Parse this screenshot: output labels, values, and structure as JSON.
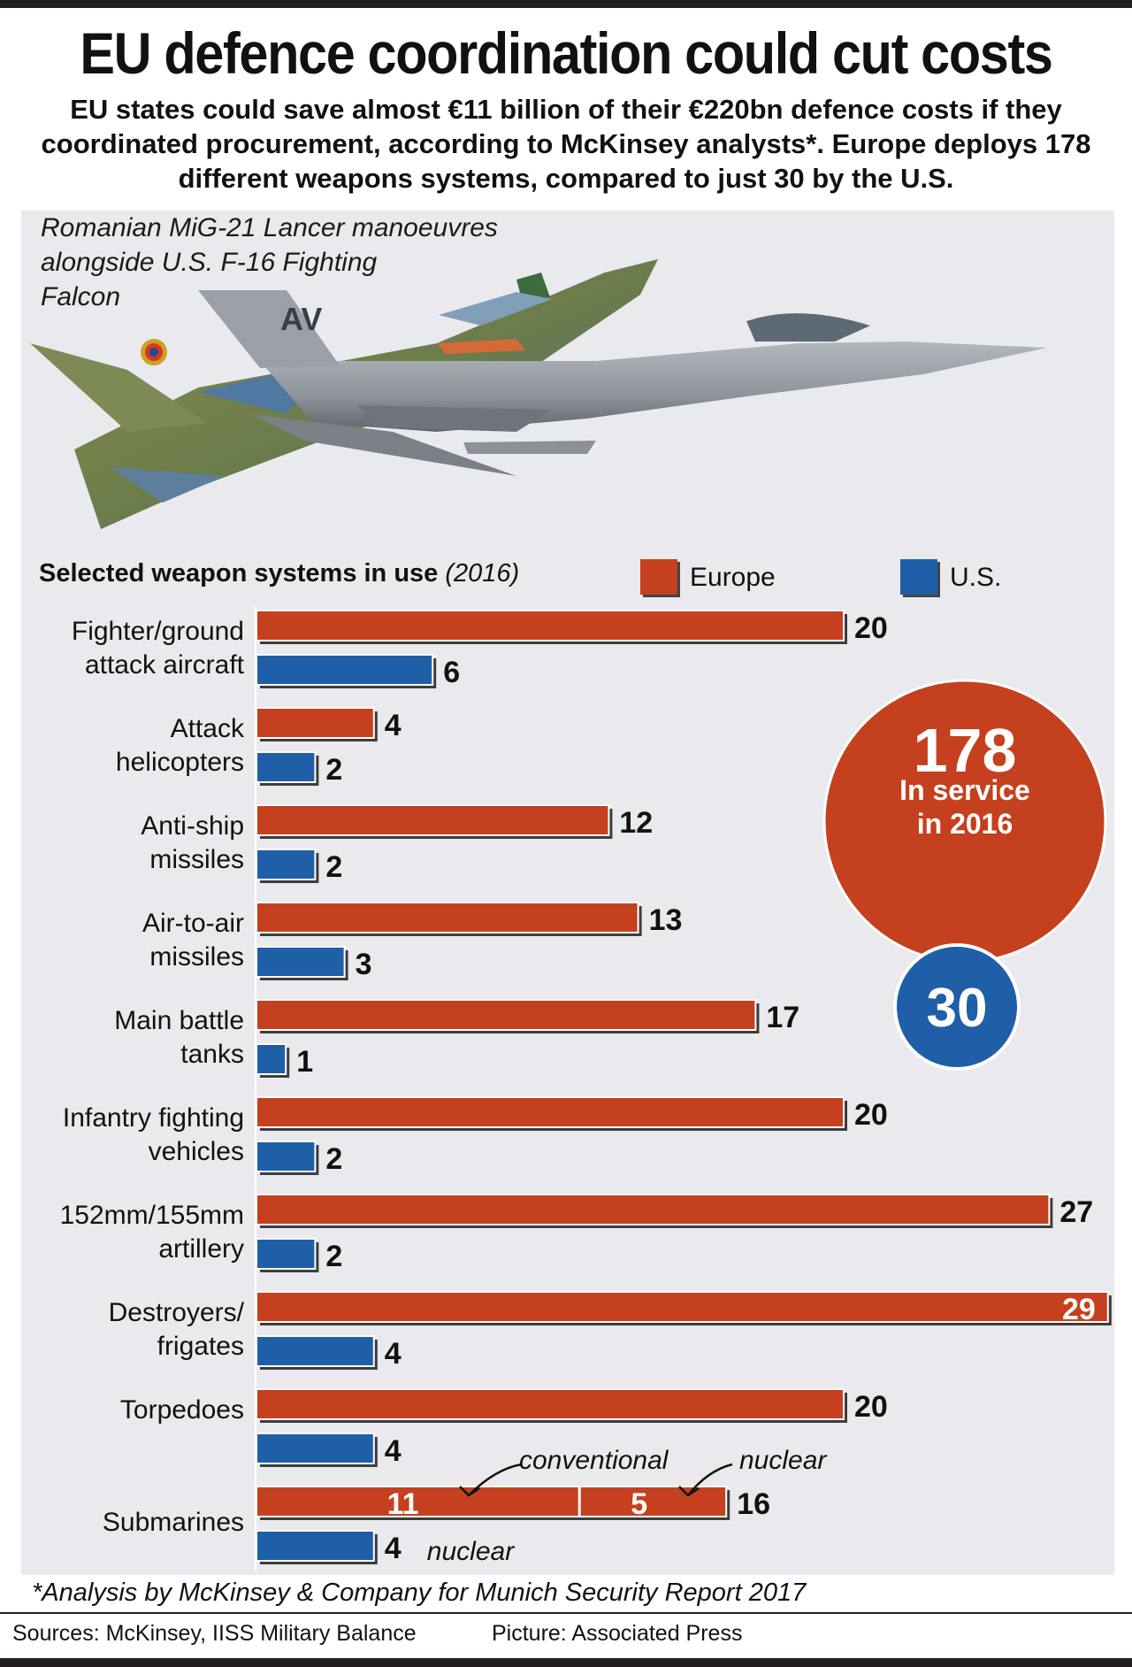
{
  "header": {
    "title": "EU defence coordination could cut costs",
    "subtitle": "EU states could save almost €11 billion of their €220bn defence costs if they coordinated procurement, according to McKinsey analysts*. Europe deploys 178 different weapons systems, compared to just 30 by the U.S."
  },
  "photo": {
    "caption_lines": [
      "Romanian MiG-21 Lancer manoeuvres",
      "alongside U.S. F-16 Fighting",
      "Falcon"
    ],
    "tail_code": "AV"
  },
  "colors": {
    "europe": "#c5401e",
    "us": "#1f5fa8",
    "panel": "#e9e9ee"
  },
  "chart_data": {
    "type": "bar",
    "title": "Selected weapon systems in use",
    "title_year": "(2016)",
    "legend": [
      "Europe",
      "U.S."
    ],
    "categories": [
      "Fighter/ground attack aircraft",
      "Attack helicopters",
      "Anti-ship missiles",
      "Air-to-air missiles",
      "Main battle tanks",
      "Infantry fighting vehicles",
      "152mm/155mm artillery",
      "Destroyers/ frigates",
      "Torpedoes",
      "Submarines"
    ],
    "category_lines": [
      [
        "Fighter/ground",
        "attack aircraft"
      ],
      [
        "Attack",
        "helicopters"
      ],
      [
        "Anti-ship",
        "missiles"
      ],
      [
        "Air-to-air",
        "missiles"
      ],
      [
        "Main battle",
        "tanks"
      ],
      [
        "Infantry fighting",
        "vehicles"
      ],
      [
        "152mm/155mm",
        "artillery"
      ],
      [
        "Destroyers/",
        "frigates"
      ],
      [
        "Torpedoes"
      ],
      [
        "Submarines"
      ]
    ],
    "series": [
      {
        "name": "Europe",
        "values": [
          20,
          4,
          12,
          13,
          17,
          20,
          27,
          29,
          20,
          16
        ]
      },
      {
        "name": "U.S.",
        "values": [
          6,
          2,
          2,
          3,
          1,
          2,
          2,
          4,
          4,
          4
        ]
      }
    ],
    "submarine_split": {
      "conventional": 11,
      "nuclear": 5,
      "conventional_label": "conventional",
      "nuclear_label": "nuclear",
      "us_label": "nuclear"
    },
    "totals": {
      "europe": 178,
      "europe_label_1": "In service",
      "europe_label_2": "in 2016",
      "us": 30
    }
  },
  "footer": {
    "footnote": "*Analysis by McKinsey & Company for Munich Security Report 2017",
    "sources": "Sources: McKinsey, IISS Military Balance",
    "picture": "Picture: Associated Press"
  }
}
